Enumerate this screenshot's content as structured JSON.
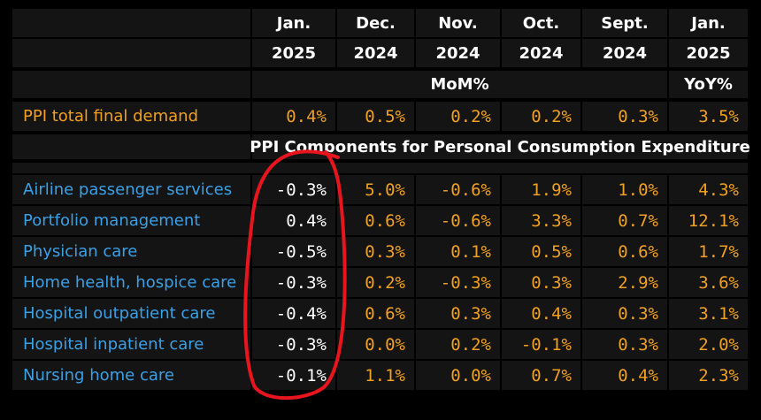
{
  "header": {
    "columns": [
      {
        "month": "Jan.",
        "year": "2025"
      },
      {
        "month": "Dec.",
        "year": "2024"
      },
      {
        "month": "Nov.",
        "year": "2024"
      },
      {
        "month": "Oct.",
        "year": "2024"
      },
      {
        "month": "Sept.",
        "year": "2024"
      },
      {
        "month": "Jan.",
        "year": "2025"
      }
    ],
    "mom_label": "MoM%",
    "yoy_label": "YoY%"
  },
  "total_row": {
    "label": "PPI total final demand",
    "values": [
      "0.4%",
      "0.5%",
      "0.2%",
      "0.2%",
      "0.3%",
      "3.5%"
    ]
  },
  "section_title": "PPI Components for Personal Consumption Expenditure",
  "rows": [
    {
      "label": "Airline passenger services",
      "values": [
        "-0.3%",
        "5.0%",
        "-0.6%",
        "1.9%",
        "1.0%",
        "4.3%"
      ]
    },
    {
      "label": "Portfolio management",
      "values": [
        "0.4%",
        "0.6%",
        "-0.6%",
        "3.3%",
        "0.7%",
        "12.1%"
      ]
    },
    {
      "label": "Physician care",
      "values": [
        "-0.5%",
        "0.3%",
        "0.1%",
        "0.5%",
        "0.6%",
        "1.7%"
      ]
    },
    {
      "label": "Home health, hospice care",
      "values": [
        "-0.3%",
        "0.2%",
        "-0.3%",
        "0.3%",
        "2.9%",
        "3.6%"
      ]
    },
    {
      "label": "Hospital outpatient care",
      "values": [
        "-0.4%",
        "0.6%",
        "0.3%",
        "0.4%",
        "0.3%",
        "3.1%"
      ]
    },
    {
      "label": "Hospital inpatient care",
      "values": [
        "-0.3%",
        "0.0%",
        "0.2%",
        "-0.1%",
        "0.3%",
        "2.0%"
      ]
    },
    {
      "label": "Nursing home care",
      "values": [
        "-0.1%",
        "1.1%",
        "0.0%",
        "0.7%",
        "0.4%",
        "2.3%"
      ]
    }
  ],
  "chart_data": {
    "type": "table",
    "columns": [
      "Jan. 2025",
      "Dec. 2024",
      "Nov. 2024",
      "Oct. 2024",
      "Sept. 2024",
      "Jan. 2025"
    ],
    "column_groups": [
      {
        "label": "MoM%",
        "span": 5
      },
      {
        "label": "YoY%",
        "span": 1
      }
    ],
    "rows": [
      {
        "label": "PPI total final demand",
        "values": [
          0.4,
          0.5,
          0.2,
          0.2,
          0.3,
          3.5
        ]
      },
      {
        "label": "Airline passenger services",
        "values": [
          -0.3,
          5.0,
          -0.6,
          1.9,
          1.0,
          4.3
        ]
      },
      {
        "label": "Portfolio management",
        "values": [
          0.4,
          0.6,
          -0.6,
          3.3,
          0.7,
          12.1
        ]
      },
      {
        "label": "Physician care",
        "values": [
          -0.5,
          0.3,
          0.1,
          0.5,
          0.6,
          1.7
        ]
      },
      {
        "label": "Home health, hospice care",
        "values": [
          -0.3,
          0.2,
          -0.3,
          0.3,
          2.9,
          3.6
        ]
      },
      {
        "label": "Hospital outpatient care",
        "values": [
          -0.4,
          0.6,
          0.3,
          0.4,
          0.3,
          3.1
        ]
      },
      {
        "label": "Hospital inpatient care",
        "values": [
          -0.3,
          0.0,
          0.2,
          -0.1,
          0.3,
          2.0
        ]
      },
      {
        "label": "Nursing home care",
        "values": [
          -0.1,
          1.1,
          0.0,
          0.7,
          0.4,
          2.3
        ]
      }
    ]
  },
  "colors": {
    "background": "#000000",
    "cell": "#141414",
    "label_blue": "#3aa0e6",
    "highlight_orange": "#f0a020",
    "text_white": "#ffffff",
    "annotation_red": "#e8141e"
  }
}
